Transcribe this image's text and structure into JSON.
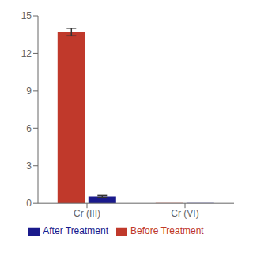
{
  "chart_data": {
    "type": "bar",
    "categories": [
      "Cr (III)",
      "Cr (VI)"
    ],
    "series": [
      {
        "name": "Before Treatment",
        "color": "#C0392B",
        "values": [
          13.7,
          0.02
        ],
        "errors": [
          0.3,
          0.0
        ]
      },
      {
        "name": "After Treatment",
        "color": "#1A1A8C",
        "values": [
          0.55,
          0.02
        ],
        "errors": [
          0.07,
          0.0
        ]
      }
    ],
    "ylim": [
      0,
      15
    ],
    "yticks": [
      0,
      3,
      6,
      9,
      12,
      15
    ],
    "grid": false,
    "legend": "bottom"
  }
}
